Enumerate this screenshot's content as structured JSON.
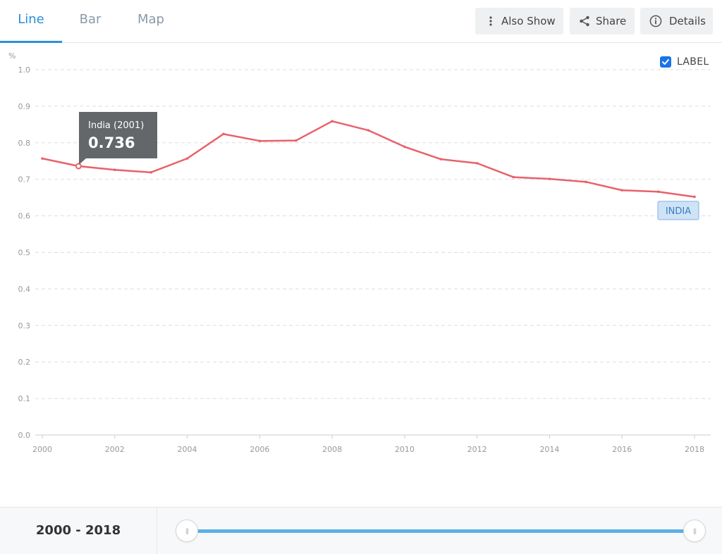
{
  "tabs": [
    {
      "label": "Line",
      "active": true
    },
    {
      "label": "Bar",
      "active": false
    },
    {
      "label": "Map",
      "active": false
    }
  ],
  "toolbar": {
    "also_show": "Also Show",
    "share": "Share",
    "details": "Details"
  },
  "label_toggle": {
    "text": "LABEL",
    "checked": true
  },
  "colors": {
    "accent": "#2a8fd8",
    "series": "#e8626a",
    "checkbox": "#1a73e8",
    "slider": "#5ab0e8"
  },
  "chart_data": {
    "type": "line",
    "ylabel": "%",
    "ylim": [
      0,
      1.0
    ],
    "yticks": [
      "0.0",
      "0.1",
      "0.2",
      "0.3",
      "0.4",
      "0.5",
      "0.6",
      "0.7",
      "0.8",
      "0.9",
      "1.0"
    ],
    "xticks": [
      "2000",
      "2002",
      "2004",
      "2006",
      "2008",
      "2010",
      "2012",
      "2014",
      "2016",
      "2018"
    ],
    "grid": true,
    "series": [
      {
        "name": "INDIA",
        "x": [
          2000,
          2001,
          2002,
          2003,
          2004,
          2005,
          2006,
          2007,
          2008,
          2009,
          2010,
          2011,
          2012,
          2013,
          2014,
          2015,
          2016,
          2017,
          2018
        ],
        "values": [
          0.757,
          0.736,
          0.726,
          0.719,
          0.757,
          0.824,
          0.805,
          0.806,
          0.859,
          0.834,
          0.789,
          0.755,
          0.744,
          0.706,
          0.701,
          0.693,
          0.67,
          0.666,
          0.652
        ]
      }
    ],
    "tooltip": {
      "title": "India (2001)",
      "value": "0.736"
    },
    "end_label": "INDIA"
  },
  "range": {
    "label": "2000 - 2018",
    "start": 2000,
    "end": 2018
  }
}
